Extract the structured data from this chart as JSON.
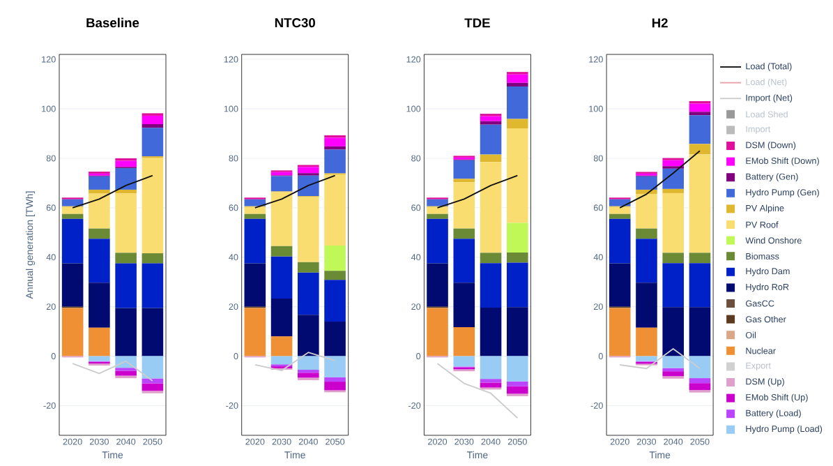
{
  "chart_data": [
    {
      "type": "bar",
      "title": "Baseline",
      "xlabel": "Time",
      "ylabel": "Annual generation [TWh]",
      "categories": [
        "2020",
        "2030",
        "2040",
        "2050"
      ],
      "stacked": true,
      "grid": "y",
      "ylim": [
        -32,
        122
      ],
      "yticks": [
        -20,
        0,
        20,
        40,
        60,
        80,
        100,
        120
      ],
      "series": [
        {
          "color": "#99ccf5",
          "values": [
            0,
            -2,
            -4.7,
            -9
          ]
        },
        {
          "color": "#bb44ff",
          "values": [
            0,
            -0.3,
            -1.2,
            -2
          ]
        },
        {
          "color": "#cc00cc",
          "values": [
            0,
            -0.7,
            -2,
            -3
          ]
        },
        {
          "color": "#e0a0cc",
          "values": [
            -0.5,
            -0.8,
            -1,
            -1
          ]
        },
        {
          "color": "#f09035",
          "values": [
            19.5,
            11.5,
            0,
            0
          ]
        },
        {
          "color": "#5c3a20",
          "values": [
            0.5,
            0,
            0,
            0
          ]
        },
        {
          "color": "#000a70",
          "values": [
            17.5,
            18.2,
            19.5,
            19.5
          ]
        },
        {
          "color": "#0020c8",
          "values": [
            18,
            17.8,
            18,
            18
          ]
        },
        {
          "color": "#6b8a35",
          "values": [
            2,
            4.1,
            4.3,
            4.1
          ]
        },
        {
          "color": "#fadd70",
          "values": [
            2.8,
            14.1,
            24,
            38.5
          ]
        },
        {
          "color": "#e0b830",
          "values": [
            0.3,
            1.6,
            1.5,
            0.7
          ]
        },
        {
          "color": "#4169d9",
          "values": [
            2.8,
            5.4,
            8.7,
            11.5
          ]
        },
        {
          "color": "#800080",
          "values": [
            0,
            0.3,
            0.5,
            1.5
          ]
        },
        {
          "color": "#ff00ff",
          "values": [
            0,
            0.8,
            2.5,
            3.4
          ]
        },
        {
          "color": "#e0109a",
          "values": [
            0.7,
            0.8,
            1,
            1
          ]
        },
        {
          "type": "line",
          "color": "#cccccc",
          "values": [
            -3,
            -7,
            -2,
            -10
          ]
        },
        {
          "type": "line",
          "color": "#111111",
          "values": [
            60,
            63.5,
            69,
            73
          ]
        }
      ]
    },
    {
      "type": "bar",
      "title": "NTC30",
      "xlabel": "Time",
      "categories": [
        "2020",
        "2030",
        "2040",
        "2050"
      ],
      "stacked": true,
      "grid": "y",
      "ylim": [
        -32,
        122
      ],
      "yticks": [
        -20,
        0,
        20,
        40,
        60,
        80,
        100,
        120
      ],
      "series": [
        {
          "color": "#99ccf5",
          "values": [
            0,
            -3.3,
            -5.5,
            -8.5
          ]
        },
        {
          "color": "#bb44ff",
          "values": [
            0,
            -0.8,
            -1.2,
            -1.8
          ]
        },
        {
          "color": "#cc00cc",
          "values": [
            0,
            -0.8,
            -2,
            -3.5
          ]
        },
        {
          "color": "#e0a0cc",
          "values": [
            -0.5,
            -0.6,
            -1,
            -0.8
          ]
        },
        {
          "color": "#f09035",
          "values": [
            19.5,
            8,
            0,
            0
          ]
        },
        {
          "color": "#5c3a20",
          "values": [
            0.5,
            0,
            0,
            0
          ]
        },
        {
          "color": "#000a70",
          "values": [
            17.5,
            15.3,
            16.7,
            14
          ]
        },
        {
          "color": "#0020c8",
          "values": [
            18,
            17,
            17.1,
            16.8
          ]
        },
        {
          "color": "#6b8a35",
          "values": [
            2,
            4.2,
            4.2,
            3.7
          ]
        },
        {
          "color": "#c0f858",
          "values": [
            0,
            0,
            0,
            10.2
          ]
        },
        {
          "color": "#fadd70",
          "values": [
            2.8,
            21.8,
            26.3,
            28.8
          ]
        },
        {
          "color": "#e0b830",
          "values": [
            0.3,
            0.3,
            0.4,
            0.4
          ]
        },
        {
          "color": "#4169d9",
          "values": [
            2.8,
            6.2,
            8.3,
            9.6
          ]
        },
        {
          "color": "#800080",
          "values": [
            0,
            0.3,
            1,
            1.3
          ]
        },
        {
          "color": "#ff00ff",
          "values": [
            0,
            1.3,
            2.5,
            3.5
          ]
        },
        {
          "color": "#e0109a",
          "values": [
            0.7,
            0.7,
            0.8,
            1
          ]
        },
        {
          "type": "line",
          "color": "#cccccc",
          "values": [
            -3.5,
            -5.8,
            1.5,
            -1.8
          ]
        },
        {
          "type": "line",
          "color": "#111111",
          "values": [
            60,
            63.5,
            69,
            73
          ]
        }
      ]
    },
    {
      "type": "bar",
      "title": "TDE",
      "xlabel": "Time",
      "categories": [
        "2020",
        "2030",
        "2040",
        "2050"
      ],
      "stacked": true,
      "grid": "y",
      "ylim": [
        -32,
        122
      ],
      "yticks": [
        -20,
        0,
        20,
        40,
        60,
        80,
        100,
        120
      ],
      "series": [
        {
          "color": "#99ccf5",
          "values": [
            0,
            -4.2,
            -9.2,
            -10.2
          ]
        },
        {
          "color": "#bb44ff",
          "values": [
            0,
            -0.3,
            -1.5,
            -2
          ]
        },
        {
          "color": "#cc00cc",
          "values": [
            0,
            -0.8,
            -2,
            -3
          ]
        },
        {
          "color": "#e0a0cc",
          "values": [
            -0.5,
            -0.8,
            -0.8,
            -1
          ]
        },
        {
          "color": "#f09035",
          "values": [
            19.5,
            11.7,
            0,
            0
          ]
        },
        {
          "color": "#5c3a20",
          "values": [
            0.5,
            0,
            0,
            0
          ]
        },
        {
          "color": "#000a70",
          "values": [
            17.5,
            18,
            19.6,
            19.8
          ]
        },
        {
          "color": "#0020c8",
          "values": [
            18,
            17.8,
            18,
            18
          ]
        },
        {
          "color": "#6b8a35",
          "values": [
            2,
            4.1,
            4.2,
            4.1
          ]
        },
        {
          "color": "#c0f858",
          "values": [
            0,
            0,
            0,
            12
          ]
        },
        {
          "color": "#fadd70",
          "values": [
            2.8,
            18.7,
            36.7,
            38.2
          ]
        },
        {
          "color": "#e0b830",
          "values": [
            0.3,
            1.4,
            3,
            3.8
          ]
        },
        {
          "color": "#4169d9",
          "values": [
            2.8,
            7.5,
            12.1,
            13.1
          ]
        },
        {
          "color": "#800080",
          "values": [
            0,
            0.3,
            1.4,
            1.5
          ]
        },
        {
          "color": "#ff00ff",
          "values": [
            0,
            0.8,
            2,
            3.4
          ]
        },
        {
          "color": "#e0109a",
          "values": [
            0.7,
            0.7,
            1,
            1
          ]
        },
        {
          "type": "line",
          "color": "#cccccc",
          "values": [
            -3,
            -11,
            -15,
            -25
          ]
        },
        {
          "type": "line",
          "color": "#111111",
          "values": [
            60,
            63.5,
            69,
            73
          ]
        }
      ]
    },
    {
      "type": "bar",
      "title": "H2",
      "xlabel": "Time",
      "categories": [
        "2020",
        "2030",
        "2040",
        "2050"
      ],
      "stacked": true,
      "grid": "y",
      "legend": "right",
      "ylim": [
        -32,
        122
      ],
      "yticks": [
        -20,
        0,
        20,
        40,
        60,
        80,
        100,
        120
      ],
      "series": [
        {
          "name": "Hydro Pump (Load)",
          "color": "#99ccf5",
          "values": [
            0,
            -2,
            -4.8,
            -8.9
          ]
        },
        {
          "name": "Battery (Load)",
          "color": "#bb44ff",
          "values": [
            0,
            -0.3,
            -1.3,
            -2
          ]
        },
        {
          "name": "EMob Shift (Up)",
          "color": "#cc00cc",
          "values": [
            0,
            -0.8,
            -2,
            -2.8
          ]
        },
        {
          "name": "DSM (Up)",
          "color": "#e0a0cc",
          "values": [
            -0.5,
            -0.6,
            -1,
            -1
          ]
        },
        {
          "name": "Export",
          "color": "#d0d0d0",
          "values": [
            null,
            null,
            null,
            null
          ]
        },
        {
          "name": "Nuclear",
          "color": "#f09035",
          "values": [
            19.5,
            11.5,
            0,
            0
          ]
        },
        {
          "name": "Oil",
          "color": "#d8a888",
          "values": [
            0,
            0,
            0,
            0
          ]
        },
        {
          "name": "Gas Other",
          "color": "#5c3a20",
          "values": [
            0.5,
            0,
            0,
            0
          ]
        },
        {
          "name": "GasCC",
          "color": "#6b5040",
          "values": [
            0,
            0,
            0,
            0
          ]
        },
        {
          "name": "Hydro RoR",
          "color": "#000a70",
          "values": [
            17.5,
            18.2,
            19.8,
            19.8
          ]
        },
        {
          "name": "Hydro Dam",
          "color": "#0020c8",
          "values": [
            18,
            17.8,
            17.8,
            17.8
          ]
        },
        {
          "name": "Biomass",
          "color": "#6b8a35",
          "values": [
            2,
            4.1,
            4.2,
            4.2
          ]
        },
        {
          "name": "Wind Onshore",
          "color": "#c0f858",
          "values": [
            0,
            0,
            0,
            0
          ]
        },
        {
          "name": "PV Roof",
          "color": "#fadd70",
          "values": [
            2.8,
            14,
            24.1,
            39.8
          ]
        },
        {
          "name": "PV Alpine",
          "color": "#e0b830",
          "values": [
            0.3,
            1.7,
            1.7,
            4.2
          ]
        },
        {
          "name": "Hydro Pump (Gen)",
          "color": "#4169d9",
          "values": [
            2.8,
            5.4,
            8.2,
            11.6
          ]
        },
        {
          "name": "Battery (Gen)",
          "color": "#800080",
          "values": [
            0,
            0.3,
            1,
            1.4
          ]
        },
        {
          "name": "EMob Shift (Down)",
          "color": "#ff00ff",
          "values": [
            0,
            0.8,
            2.4,
            3.3
          ]
        },
        {
          "name": "DSM (Down)",
          "color": "#e0109a",
          "values": [
            0.7,
            0.7,
            0.9,
            1
          ]
        },
        {
          "name": "Import",
          "color": "#bbbbbb",
          "values": [
            null,
            null,
            null,
            null
          ]
        },
        {
          "name": "Load Shed",
          "color": "#999999",
          "values": [
            null,
            null,
            null,
            null
          ]
        },
        {
          "name": "Import (Net)",
          "type": "line",
          "color": "#cccccc",
          "values": [
            -3.5,
            -5,
            3,
            -5
          ]
        },
        {
          "name": "Load (Net)",
          "type": "line",
          "color": "#e8a0a8",
          "values": [
            null,
            null,
            null,
            null
          ]
        },
        {
          "name": "Load (Total)",
          "type": "line",
          "color": "#111111",
          "values": [
            60,
            65.5,
            74,
            83
          ]
        }
      ]
    }
  ]
}
